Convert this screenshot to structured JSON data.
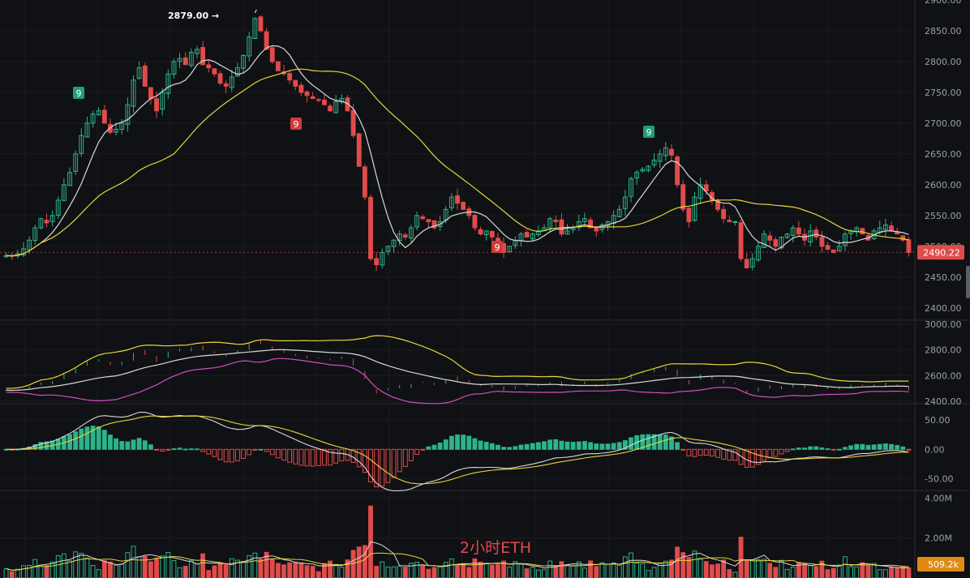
{
  "colors": {
    "background": "#101114",
    "grid": "#1f2126",
    "up": "#2bb48a",
    "down": "#e14b4b",
    "ma_white": "#d9d9d9",
    "ma_yellow": "#e8d43a",
    "boll_pink": "#d14fc1",
    "axis_text": "#9aa0a6",
    "price_tag_bg": "#e14b4b",
    "volume_tag_bg": "#e08a16"
  },
  "annotation": {
    "label": "2879.00 →"
  },
  "watermark": "2小时ETH",
  "badges": [
    "9",
    "9",
    "9"
  ],
  "chart_data": [
    {
      "type": "candlestick",
      "panel": "price",
      "ylim": [
        2380,
        2900
      ],
      "yticks": [
        "2900.00",
        "2850.00",
        "2800.00",
        "2750.00",
        "2700.00",
        "2650.00",
        "2600.00",
        "2550.00",
        "2500.00",
        "2450.00",
        "2400.00"
      ],
      "ytick_values": [
        2900,
        2850,
        2800,
        2750,
        2700,
        2650,
        2600,
        2550,
        2500,
        2450,
        2400
      ],
      "last_price": "2490.22",
      "last_price_value": 2490.22,
      "high_marker": 2879,
      "moving_averages": [
        "short (white)",
        "long (yellow)"
      ],
      "close_path": [
        2485,
        2484,
        2488,
        2496,
        2510,
        2530,
        2545,
        2538,
        2550,
        2575,
        2600,
        2620,
        2650,
        2680,
        2700,
        2715,
        2720,
        2700,
        2685,
        2690,
        2700,
        2730,
        2770,
        2790,
        2760,
        2740,
        2720,
        2750,
        2780,
        2800,
        2805,
        2795,
        2815,
        2820,
        2795,
        2790,
        2780,
        2765,
        2760,
        2775,
        2790,
        2810,
        2840,
        2870,
        2850,
        2820,
        2800,
        2785,
        2780,
        2770,
        2760,
        2750,
        2745,
        2740,
        2738,
        2730,
        2720,
        2735,
        2740,
        2720,
        2680,
        2630,
        2580,
        2480,
        2470,
        2490,
        2500,
        2510,
        2520,
        2515,
        2530,
        2550,
        2545,
        2540,
        2530,
        2540,
        2560,
        2580,
        2570,
        2560,
        2550,
        2530,
        2520,
        2525,
        2515,
        2505,
        2490,
        2500,
        2510,
        2520,
        2515,
        2520,
        2525,
        2530,
        2545,
        2540,
        2520,
        2525,
        2530,
        2540,
        2545,
        2530,
        2525,
        2535,
        2540,
        2550,
        2560,
        2580,
        2610,
        2620,
        2625,
        2630,
        2640,
        2650,
        2660,
        2648,
        2600,
        2560,
        2540,
        2580,
        2600,
        2590,
        2575,
        2560,
        2545,
        2540,
        2540,
        2480,
        2465,
        2480,
        2500,
        2520,
        2510,
        2500,
        2515,
        2520,
        2530,
        2520,
        2510,
        2525,
        2515,
        2500,
        2495,
        2490,
        2500,
        2520,
        2525,
        2530,
        2520,
        2510,
        2525,
        2530,
        2535,
        2525,
        2520,
        2510,
        2490
      ]
    },
    {
      "type": "line",
      "panel": "bollinger",
      "ylim": [
        2380,
        3020
      ],
      "yticks": [
        "3000.00",
        "2800.00",
        "2600.00",
        "2400.00"
      ],
      "ytick_values": [
        3000,
        2800,
        2600,
        2400
      ],
      "bands": [
        "upper (yellow)",
        "middle (white)",
        "lower (pink)"
      ]
    },
    {
      "type": "bar",
      "panel": "macd",
      "ylim": [
        -70,
        75
      ],
      "yticks": [
        "50.00",
        "0.00",
        "-50.00"
      ],
      "ytick_values": [
        50,
        0,
        -50
      ]
    },
    {
      "type": "bar",
      "panel": "volume",
      "ylim": [
        0,
        4300000
      ],
      "yticks": [
        "4.00M",
        "2.00M"
      ],
      "ytick_values": [
        4000000,
        2000000
      ],
      "last_volume": "509.2k",
      "last_volume_value": 509200
    }
  ]
}
